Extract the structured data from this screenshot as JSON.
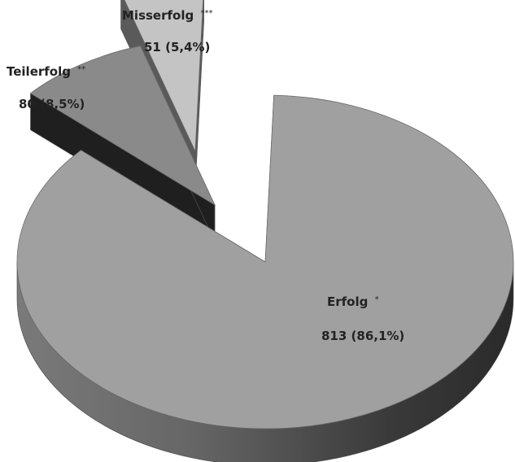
{
  "chart_data": {
    "type": "pie",
    "three_d": true,
    "exploded": true,
    "slices": [
      {
        "label": "Erfolg",
        "marker": "*",
        "value": 813,
        "percent_text": "813 (86,1%)",
        "color": "#a0a0a0"
      },
      {
        "label": "Teilerfolg",
        "marker": "**",
        "value": 80,
        "percent_text": "80 (8,5%)",
        "color": "#8a8a8a"
      },
      {
        "label": "Misserfolg",
        "marker": "***",
        "value": 51,
        "percent_text": "51 (5,4%)",
        "color": "#c4c4c4"
      }
    ],
    "legend": "none"
  }
}
